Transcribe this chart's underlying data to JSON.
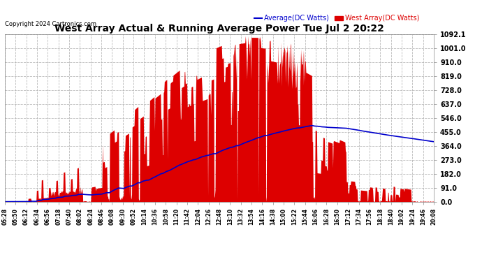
{
  "title": "West Array Actual & Running Average Power Tue Jul 2 20:22",
  "copyright": "Copyright 2024 Cartronics.com",
  "legend_avg": "Average(DC Watts)",
  "legend_west": "West Array(DC Watts)",
  "yticks": [
    0.0,
    91.0,
    182.0,
    273.0,
    364.0,
    455.0,
    546.0,
    637.0,
    728.0,
    819.0,
    910.0,
    1001.0,
    1092.1
  ],
  "ymax": 1092.1,
  "ymin": 0,
  "grid_color": "#aaaaaa",
  "area_color": "#dd0000",
  "avg_color": "#0000cc",
  "xtick_labels": [
    "05:28",
    "05:50",
    "06:12",
    "06:34",
    "06:56",
    "07:18",
    "07:40",
    "08:02",
    "08:24",
    "08:46",
    "09:08",
    "09:30",
    "09:52",
    "10:14",
    "10:36",
    "10:58",
    "11:20",
    "11:42",
    "12:04",
    "12:26",
    "12:48",
    "13:10",
    "13:32",
    "13:54",
    "14:16",
    "14:38",
    "15:00",
    "15:22",
    "15:44",
    "16:06",
    "16:28",
    "16:50",
    "17:12",
    "17:34",
    "17:56",
    "18:18",
    "18:40",
    "19:02",
    "19:24",
    "19:46",
    "20:08"
  ]
}
